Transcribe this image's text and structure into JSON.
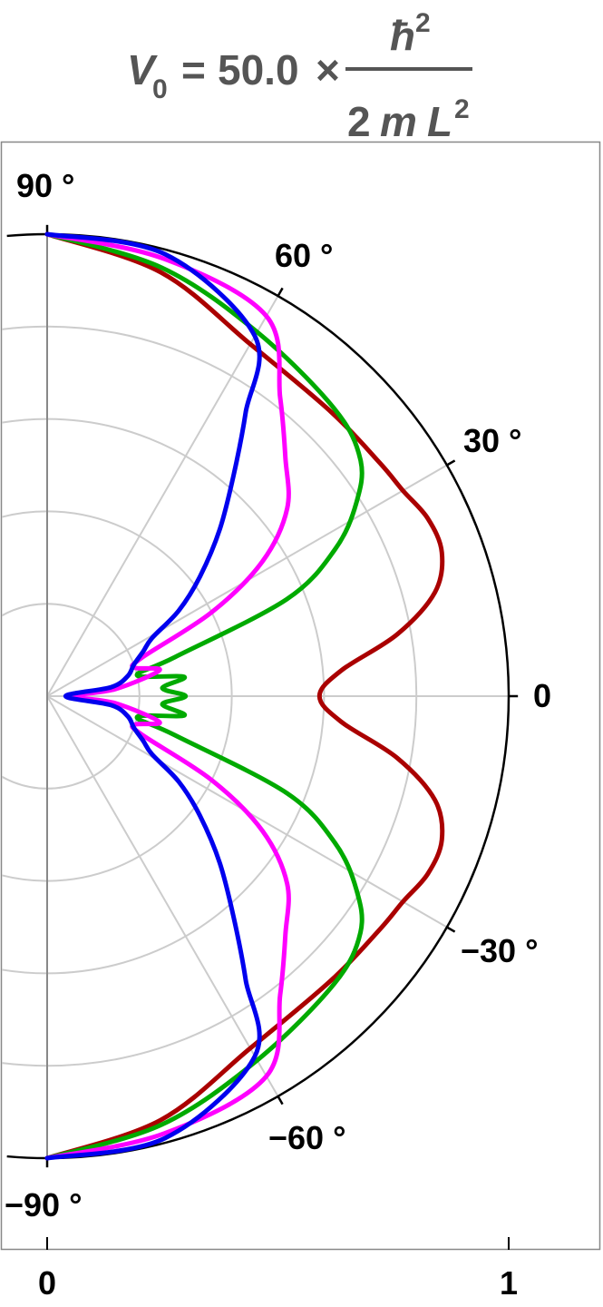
{
  "title": {
    "lhs": "V",
    "lhs_sub": "0",
    "equals": "=",
    "coefficient": "50.0",
    "times": "×",
    "numerator": "ħ",
    "numerator_sup": "2",
    "denominator_prefix": "2",
    "denominator_m": "m",
    "denominator_L": "L",
    "denominator_sup": "2"
  },
  "chart_data": {
    "type": "polar-line",
    "angle_range_deg": [
      -90,
      90
    ],
    "radial_range": [
      0,
      1
    ],
    "grid": true,
    "grid_radii": [
      0.2,
      0.4,
      0.6,
      0.8
    ],
    "grid_angles_deg": [
      -60,
      -30,
      0,
      30,
      60
    ],
    "angle_ticks_deg": [
      90,
      60,
      30,
      0,
      -30,
      -60,
      -90
    ],
    "angle_tick_labels": [
      "90 °",
      "60 °",
      "30 °",
      "0",
      "−30 °",
      "−60 °",
      "−90 °"
    ],
    "x_ticks": [
      0,
      1
    ],
    "x_tick_labels": [
      "0",
      "1"
    ],
    "series": [
      {
        "color": "#aa0000",
        "points": [
          [
            0,
            0.59
          ],
          [
            5,
            0.64
          ],
          [
            10,
            0.77
          ],
          [
            15,
            0.87
          ],
          [
            20,
            0.91
          ],
          [
            25,
            0.91
          ],
          [
            30,
            0.89
          ],
          [
            35,
            0.88
          ],
          [
            45,
            0.87
          ],
          [
            60,
            0.88
          ],
          [
            75,
            0.95
          ],
          [
            90,
            1.0
          ]
        ]
      },
      {
        "color": "#00aa00",
        "points": [
          [
            0,
            0.3
          ],
          [
            4,
            0.25
          ],
          [
            8,
            0.3
          ],
          [
            13,
            0.2
          ],
          [
            17,
            0.29
          ],
          [
            22,
            0.56
          ],
          [
            27,
            0.7
          ],
          [
            32,
            0.79
          ],
          [
            37,
            0.85
          ],
          [
            45,
            0.88
          ],
          [
            60,
            0.91
          ],
          [
            75,
            0.96
          ],
          [
            90,
            1.0
          ]
        ]
      },
      {
        "color": "#ff00ff",
        "points": [
          [
            0,
            0.06
          ],
          [
            6,
            0.15
          ],
          [
            13,
            0.25
          ],
          [
            18,
            0.2
          ],
          [
            22,
            0.22
          ],
          [
            27,
            0.4
          ],
          [
            32,
            0.55
          ],
          [
            38,
            0.66
          ],
          [
            45,
            0.73
          ],
          [
            52,
            0.82
          ],
          [
            60,
            0.95
          ],
          [
            75,
            0.98
          ],
          [
            90,
            1.0
          ]
        ]
      },
      {
        "color": "#0000ee",
        "points": [
          [
            0,
            0.04
          ],
          [
            8,
            0.14
          ],
          [
            14,
            0.18
          ],
          [
            20,
            0.2
          ],
          [
            25,
            0.23
          ],
          [
            29,
            0.26
          ],
          [
            33,
            0.34
          ],
          [
            38,
            0.42
          ],
          [
            44,
            0.52
          ],
          [
            50,
            0.63
          ],
          [
            55,
            0.75
          ],
          [
            60,
            0.9
          ],
          [
            75,
            0.99
          ],
          [
            90,
            1.0
          ]
        ]
      }
    ]
  }
}
